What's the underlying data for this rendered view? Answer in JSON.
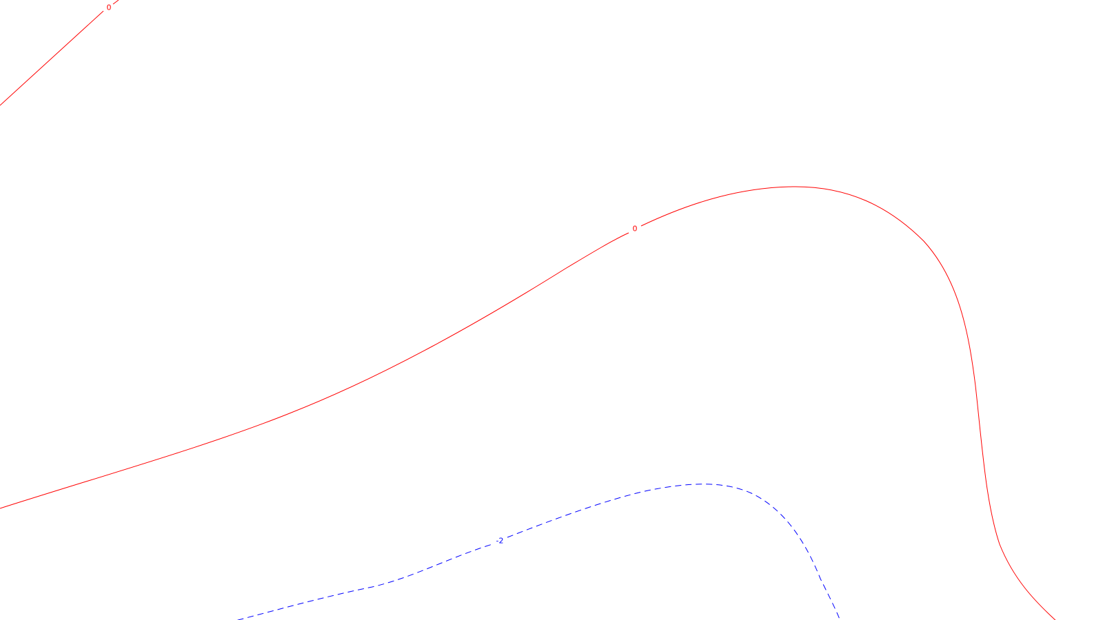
{
  "contour_map": {
    "background": "#ffffff",
    "contours": [
      {
        "id": "contour-0-upper-left",
        "level_label": "0",
        "color": "#ff0000",
        "style": "solid"
      },
      {
        "id": "contour-0-main",
        "level_label": "0",
        "color": "#ff0000",
        "style": "solid"
      },
      {
        "id": "contour-neg2",
        "level_label": "-2",
        "color": "#0000ff",
        "style": "dashed"
      }
    ]
  }
}
